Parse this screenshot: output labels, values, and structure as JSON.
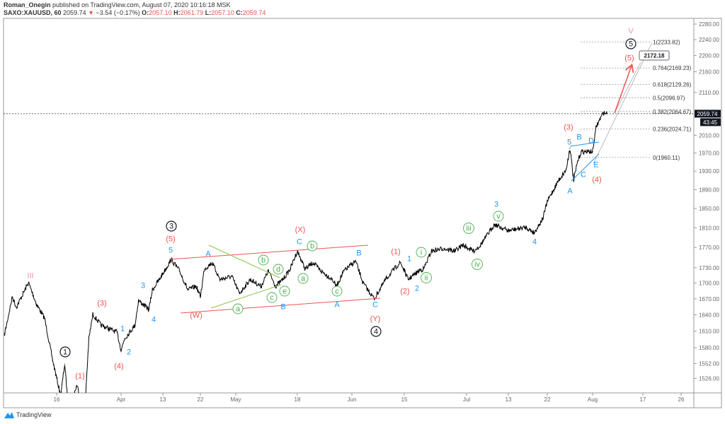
{
  "header": {
    "author": "Roman_Onegin",
    "published": "published on TradingView.com, August 07, 2020 10:16:18 MSK",
    "symbol": "SAXO:XAUUSD, 60",
    "last": "2059.74",
    "change": "−3.54 (−0.17%)",
    "o_label": "O:",
    "o": "2057.10",
    "h_label": "H:",
    "h": "2061.79",
    "l_label": "L:",
    "l": "2057.10",
    "c_label": "C:",
    "c": "2059.74"
  },
  "price_tag": {
    "price": "2059.74",
    "countdown": "43:45"
  },
  "callout": "2172.18",
  "footer": {
    "brand": "TradingView"
  },
  "colors": {
    "red": "#ef5350",
    "blue": "#2196f3",
    "green": "#4caf50",
    "pink": "#f48fb1",
    "black": "#131722",
    "down": "#ef5350"
  },
  "chart_data": {
    "type": "line",
    "scale": "log",
    "ylim": [
      1510,
      2290
    ],
    "y_ticks": [
      "2280.00",
      "2240.00",
      "2200.00",
      "2160.00",
      "2110.00",
      "2010.00",
      "1970.00",
      "1930.00",
      "1890.00",
      "1850.00",
      "1810.00",
      "1770.00",
      "1730.00",
      "1700.00",
      "1670.00",
      "1640.00",
      "1610.00",
      "1580.00",
      "1552.00",
      "1526.00"
    ],
    "x_ticks": [
      "16",
      "Apr",
      "13",
      "22",
      "May",
      "18",
      "Jun",
      "15",
      "Jul",
      "13",
      "22",
      "Aug",
      "17",
      "26"
    ],
    "series": [
      {
        "x": [
          "2020-03-03",
          "2020-03-05",
          "2020-03-06",
          "2020-03-09",
          "2020-03-11",
          "2020-03-13",
          "2020-03-15",
          "2020-03-17",
          "2020-03-18",
          "2020-03-19",
          "2020-03-21",
          "2020-03-23",
          "2020-03-24",
          "2020-03-25",
          "2020-03-27",
          "2020-03-31",
          "2020-04-01",
          "2020-04-02",
          "2020-04-05",
          "2020-04-06",
          "2020-04-09",
          "2020-04-10",
          "2020-04-12",
          "2020-04-15",
          "2020-04-17",
          "2020-04-19",
          "2020-04-21",
          "2020-04-22",
          "2020-04-23",
          "2020-04-25",
          "2020-04-27",
          "2020-04-30",
          "2020-05-02",
          "2020-05-05",
          "2020-05-08",
          "2020-05-10",
          "2020-05-12",
          "2020-05-14",
          "2020-05-16",
          "2020-05-18",
          "2020-05-20",
          "2020-05-22",
          "2020-05-24",
          "2020-05-27",
          "2020-05-28",
          "2020-05-30",
          "2020-06-02",
          "2020-06-04",
          "2020-06-07",
          "2020-06-10",
          "2020-06-13",
          "2020-06-14",
          "2020-06-16",
          "2020-06-19",
          "2020-06-20",
          "2020-06-22",
          "2020-06-25",
          "2020-06-28",
          "2020-06-30",
          "2020-07-03",
          "2020-07-05",
          "2020-07-09",
          "2020-07-13",
          "2020-07-17",
          "2020-07-19",
          "2020-07-21",
          "2020-07-22",
          "2020-07-25",
          "2020-07-27",
          "2020-07-28",
          "2020-07-29",
          "2020-07-30",
          "2020-07-31",
          "2020-08-03",
          "2020-08-04",
          "2020-08-05",
          "2020-08-06",
          "2020-08-07"
        ],
        "y": [
          1602,
          1674,
          1654,
          1701,
          1660,
          1634,
          1558,
          1496,
          1551,
          1470,
          1514,
          1475,
          1596,
          1641,
          1621,
          1608,
          1576,
          1596,
          1621,
          1667,
          1650,
          1687,
          1707,
          1746,
          1724,
          1687,
          1694,
          1674,
          1727,
          1740,
          1707,
          1713,
          1680,
          1707,
          1694,
          1724,
          1694,
          1707,
          1727,
          1763,
          1727,
          1740,
          1724,
          1707,
          1694,
          1724,
          1743,
          1700,
          1670,
          1707,
          1733,
          1740,
          1707,
          1725,
          1728,
          1763,
          1768,
          1763,
          1775,
          1763,
          1775,
          1817,
          1804,
          1811,
          1800,
          1830,
          1865,
          1910,
          1933,
          1981,
          1910,
          1950,
          1973,
          1973,
          2029,
          2046,
          2062,
          2059.74
        ]
      }
    ],
    "current_price": 2059.74,
    "fib_levels": [
      {
        "label": "1(2233.82)",
        "price": 2233.82
      },
      {
        "label": "0.764(2169.23)",
        "price": 2169.23
      },
      {
        "label": "0.618(2129.26)",
        "price": 2129.26
      },
      {
        "label": "0.5(2096.97)",
        "price": 2096.97
      },
      {
        "label": "0.382(2064.67)",
        "price": 2064.67
      },
      {
        "label": "0.236(2024.71)",
        "price": 2024.71
      },
      {
        "label": "0(1960.11)",
        "price": 1960.11
      }
    ],
    "annotations": [
      {
        "text": "III",
        "color": "pink"
      },
      {
        "text": "1",
        "color": "black",
        "circled": true
      },
      {
        "text": "(1)",
        "color": "red"
      },
      {
        "text": "(3)",
        "color": "red"
      },
      {
        "text": "1",
        "color": "blue"
      },
      {
        "text": "2",
        "color": "blue"
      },
      {
        "text": "(4)",
        "color": "red"
      },
      {
        "text": "3",
        "color": "blue"
      },
      {
        "text": "4",
        "color": "blue"
      },
      {
        "text": "3",
        "color": "black",
        "circled": true
      },
      {
        "text": "(5)",
        "color": "red"
      },
      {
        "text": "5",
        "color": "blue"
      },
      {
        "text": "A",
        "color": "blue"
      },
      {
        "text": "(W)",
        "color": "red"
      },
      {
        "text": "b",
        "color": "green",
        "circled": true
      },
      {
        "text": "d",
        "color": "green",
        "circled": true
      },
      {
        "text": "a",
        "color": "green",
        "circled": true
      },
      {
        "text": "c",
        "color": "green",
        "circled": true
      },
      {
        "text": "e",
        "color": "green",
        "circled": true
      },
      {
        "text": "B",
        "color": "blue"
      },
      {
        "text": "(X)",
        "color": "red"
      },
      {
        "text": "C",
        "color": "blue"
      },
      {
        "text": "b",
        "color": "green",
        "circled": true
      },
      {
        "text": "a",
        "color": "green",
        "circled": true
      },
      {
        "text": "c",
        "color": "green",
        "circled": true
      },
      {
        "text": "A",
        "color": "blue"
      },
      {
        "text": "B",
        "color": "blue"
      },
      {
        "text": "C",
        "color": "blue"
      },
      {
        "text": "(Y)",
        "color": "red"
      },
      {
        "text": "4",
        "color": "black",
        "circled": true
      },
      {
        "text": "(1)",
        "color": "red"
      },
      {
        "text": "1",
        "color": "blue"
      },
      {
        "text": "i",
        "color": "green",
        "circled": true
      },
      {
        "text": "(2)",
        "color": "red"
      },
      {
        "text": "2",
        "color": "blue"
      },
      {
        "text": "ii",
        "color": "green",
        "circled": true
      },
      {
        "text": "iii",
        "color": "green",
        "circled": true
      },
      {
        "text": "iv",
        "color": "green",
        "circled": true
      },
      {
        "text": "v",
        "color": "green",
        "circled": true
      },
      {
        "text": "3",
        "color": "blue"
      },
      {
        "text": "4",
        "color": "blue"
      },
      {
        "text": "A",
        "color": "blue"
      },
      {
        "text": "(3)",
        "color": "red"
      },
      {
        "text": "5",
        "color": "blue"
      },
      {
        "text": "B",
        "color": "blue"
      },
      {
        "text": "D",
        "color": "blue"
      },
      {
        "text": "C",
        "color": "blue"
      },
      {
        "text": "E",
        "color": "blue"
      },
      {
        "text": "(4)",
        "color": "red"
      },
      {
        "text": "V",
        "color": "pink"
      },
      {
        "text": "5",
        "color": "black",
        "circled": true
      },
      {
        "text": "(5)",
        "color": "red"
      }
    ]
  }
}
